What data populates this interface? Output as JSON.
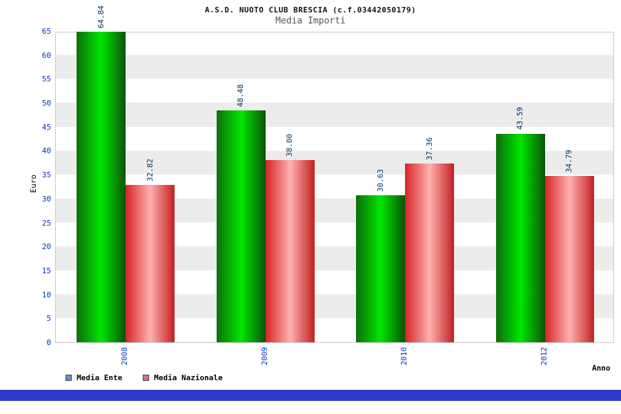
{
  "chart_data": {
    "type": "bar",
    "title": "A.S.D. NUOTO CLUB BRESCIA (c.f.03442050179)",
    "subtitle": "Media Importi",
    "xlabel": "Anno",
    "ylabel": "Euro",
    "categories": [
      "2008",
      "2009",
      "2010",
      "2012"
    ],
    "series": [
      {
        "name": "Media Ente",
        "values": [
          64.84,
          48.48,
          30.63,
          43.59
        ],
        "labels": [
          "64.84",
          "48.48",
          "30.63",
          "43.59"
        ],
        "legend_color": "#6e8fc9",
        "bar_gradient": [
          "#0b6e0b",
          "#00e600",
          "#0a540a"
        ]
      },
      {
        "name": "Media Nazionale",
        "values": [
          32.82,
          38.0,
          37.36,
          34.79
        ],
        "labels": [
          "32.82",
          "38.00",
          "37.36",
          "34.79"
        ],
        "legend_color": "#d0708a",
        "bar_gradient": [
          "#d62424",
          "#ffb0b0",
          "#c22020"
        ]
      }
    ],
    "ylim": [
      0,
      65
    ],
    "ytick_step": 5,
    "legend_position": "bottom-left",
    "grid": "alternating-horizontal-bands"
  },
  "colors": {
    "tick_label": "#0033cc",
    "value_label": "#003366",
    "band_light": "#ffffff",
    "band_dark": "#ececec",
    "plot_border": "#c8c8c8",
    "bottom_strip": "#2b3acc",
    "legend_text": "#000000"
  }
}
